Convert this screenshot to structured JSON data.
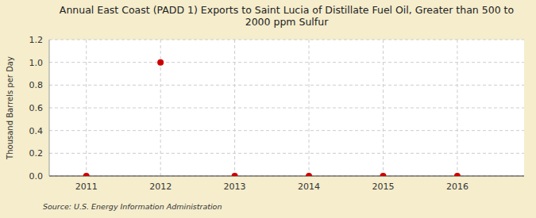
{
  "chart_data": {
    "type": "scatter",
    "title": "Annual East Coast (PADD 1) Exports to Saint Lucia of Distillate Fuel Oil, Greater than 500 to\n2000 ppm Sulfur",
    "y_label": "Thousand Barrels per Day",
    "annotations": [
      "Source: U.S. Energy Information Administration"
    ],
    "x": [
      2011,
      2012,
      2013,
      2014,
      2015,
      2016
    ],
    "values": [
      0.0,
      1.0,
      0.0,
      0.0,
      0.0,
      0.0
    ],
    "color": "#cc0000",
    "xlim": [
      2010.5,
      2016.9
    ],
    "ylim": [
      0.0,
      1.2
    ],
    "xticks": [
      2011,
      2012,
      2013,
      2014,
      2015,
      2016
    ],
    "yticks": [
      {
        "value": 0.0,
        "label": "0.0"
      },
      0.2,
      0.4,
      0.6,
      0.8,
      {
        "value": 1.0,
        "label": "1.0"
      },
      1.2
    ],
    "grid": true
  }
}
